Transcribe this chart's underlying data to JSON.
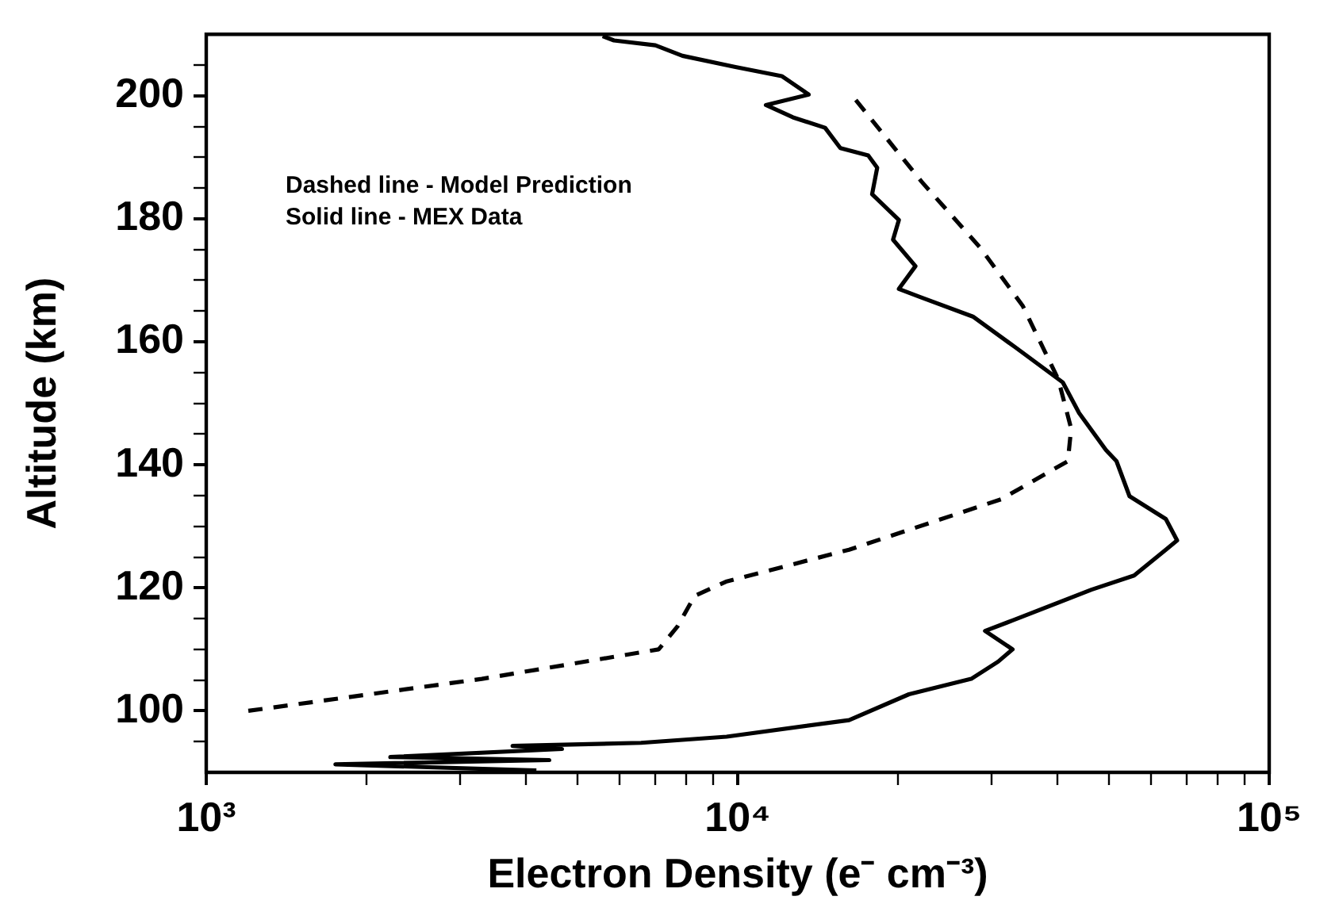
{
  "chart_data": {
    "type": "line",
    "xlabel": "Electron Density (e⁻ cm⁻³)",
    "ylabel": "Altitude (km)",
    "log": "x",
    "xlim": [
      1000,
      100000
    ],
    "ylim": [
      90,
      210
    ],
    "xticks": [
      {
        "value": 1000,
        "label": "10³"
      },
      {
        "value": 2000,
        "label": null
      },
      {
        "value": 3000,
        "label": null
      },
      {
        "value": 4000,
        "label": null
      },
      {
        "value": 5000,
        "label": null
      },
      {
        "value": 6000,
        "label": null
      },
      {
        "value": 7000,
        "label": null
      },
      {
        "value": 8000,
        "label": null
      },
      {
        "value": 9000,
        "label": null
      },
      {
        "value": 10000,
        "label": "10⁴"
      },
      {
        "value": 20000,
        "label": null
      },
      {
        "value": 30000,
        "label": null
      },
      {
        "value": 40000,
        "label": null
      },
      {
        "value": 50000,
        "label": null
      },
      {
        "value": 60000,
        "label": null
      },
      {
        "value": 70000,
        "label": null
      },
      {
        "value": 80000,
        "label": null
      },
      {
        "value": 90000,
        "label": null
      },
      {
        "value": 100000,
        "label": "10⁵"
      }
    ],
    "yticks": [
      {
        "value": 95,
        "label": null
      },
      100,
      {
        "value": 105,
        "label": null
      },
      {
        "value": 110,
        "label": null
      },
      {
        "value": 115,
        "label": null
      },
      120,
      {
        "value": 125,
        "label": null
      },
      {
        "value": 130,
        "label": null
      },
      {
        "value": 135,
        "label": null
      },
      140,
      {
        "value": 145,
        "label": null
      },
      {
        "value": 150,
        "label": null
      },
      {
        "value": 155,
        "label": null
      },
      160,
      {
        "value": 165,
        "label": null
      },
      {
        "value": 170,
        "label": null
      },
      {
        "value": 175,
        "label": null
      },
      180,
      {
        "value": 185,
        "label": null
      },
      {
        "value": 190,
        "label": null
      },
      {
        "value": 195,
        "label": null
      },
      200,
      {
        "value": 205,
        "label": null
      }
    ],
    "marker": "none",
    "legend": false,
    "annotations": [
      "Dashed line - Model Prediction",
      "Solid line - MEX Data"
    ],
    "series": [
      {
        "color": "#000000",
        "line_style": "dashed",
        "x": [
          1200,
          3300,
          7100,
          7700,
          8300,
          9500,
          16200,
          31300,
          41800,
          42400,
          40100,
          34400,
          28600,
          22200,
          16500
        ],
        "values": [
          100,
          105.2,
          110,
          113.7,
          118.7,
          121,
          126.2,
          134.4,
          140.6,
          145.9,
          153.9,
          165.8,
          175.3,
          186,
          199.8
        ]
      },
      {
        "color": "#000000",
        "line_style": "solid",
        "x": [
          4180,
          1750,
          4420,
          2220,
          4670,
          3770,
          6580,
          9530,
          16200,
          21000,
          27500,
          30900,
          32900,
          29200,
          32900,
          46300,
          55700,
          63900,
          67100,
          63900,
          54600,
          51600,
          49300,
          43900,
          40900,
          33300,
          27700,
          22000,
          20100,
          21600,
          19600,
          20100,
          17900,
          18300,
          17600,
          15600,
          14600,
          12700,
          11300,
          13600,
          12100,
          9860,
          7870,
          7000,
          5850,
          5570
        ],
        "values": [
          90.3,
          91.3,
          92,
          92.5,
          93.8,
          94.3,
          94.8,
          95.8,
          98.5,
          102.7,
          105.2,
          108,
          110,
          113,
          114.7,
          119.7,
          122,
          126.2,
          127.7,
          131.2,
          134.9,
          140.6,
          142.4,
          148.4,
          153.4,
          159.1,
          164.1,
          167.3,
          168.6,
          172.3,
          176.6,
          179.8,
          184,
          188.3,
          190.3,
          191.5,
          194.8,
          196.5,
          198.5,
          200.2,
          203.2,
          204.7,
          206.5,
          208.2,
          209,
          209.7
        ]
      }
    ]
  }
}
